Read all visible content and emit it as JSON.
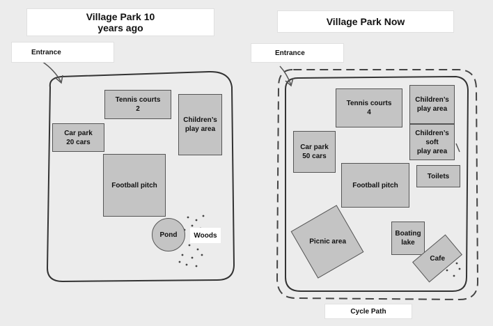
{
  "before": {
    "title": "Village Park 10 years ago",
    "entrance": "Entrance",
    "tennis": "Tennis courts\n2",
    "play_area": "Children’s\nplay area",
    "car_park": "Car park\n20 cars",
    "football": "Football pitch",
    "pond": "Pond",
    "woods": "Woods"
  },
  "after": {
    "title": "Village Park Now",
    "entrance": "Entrance",
    "tennis": "Tennis courts\n4",
    "play_area": "Children’s\nplay area",
    "soft_play": "Children’s\nsoft\nplay area",
    "car_park": "Car park\n50 cars",
    "toilets": "Toilets",
    "football": "Football pitch",
    "picnic": "Picnic area",
    "boating": "Boating\nlake",
    "cafe": "Cafe",
    "cycle_path": "Cycle Path"
  }
}
